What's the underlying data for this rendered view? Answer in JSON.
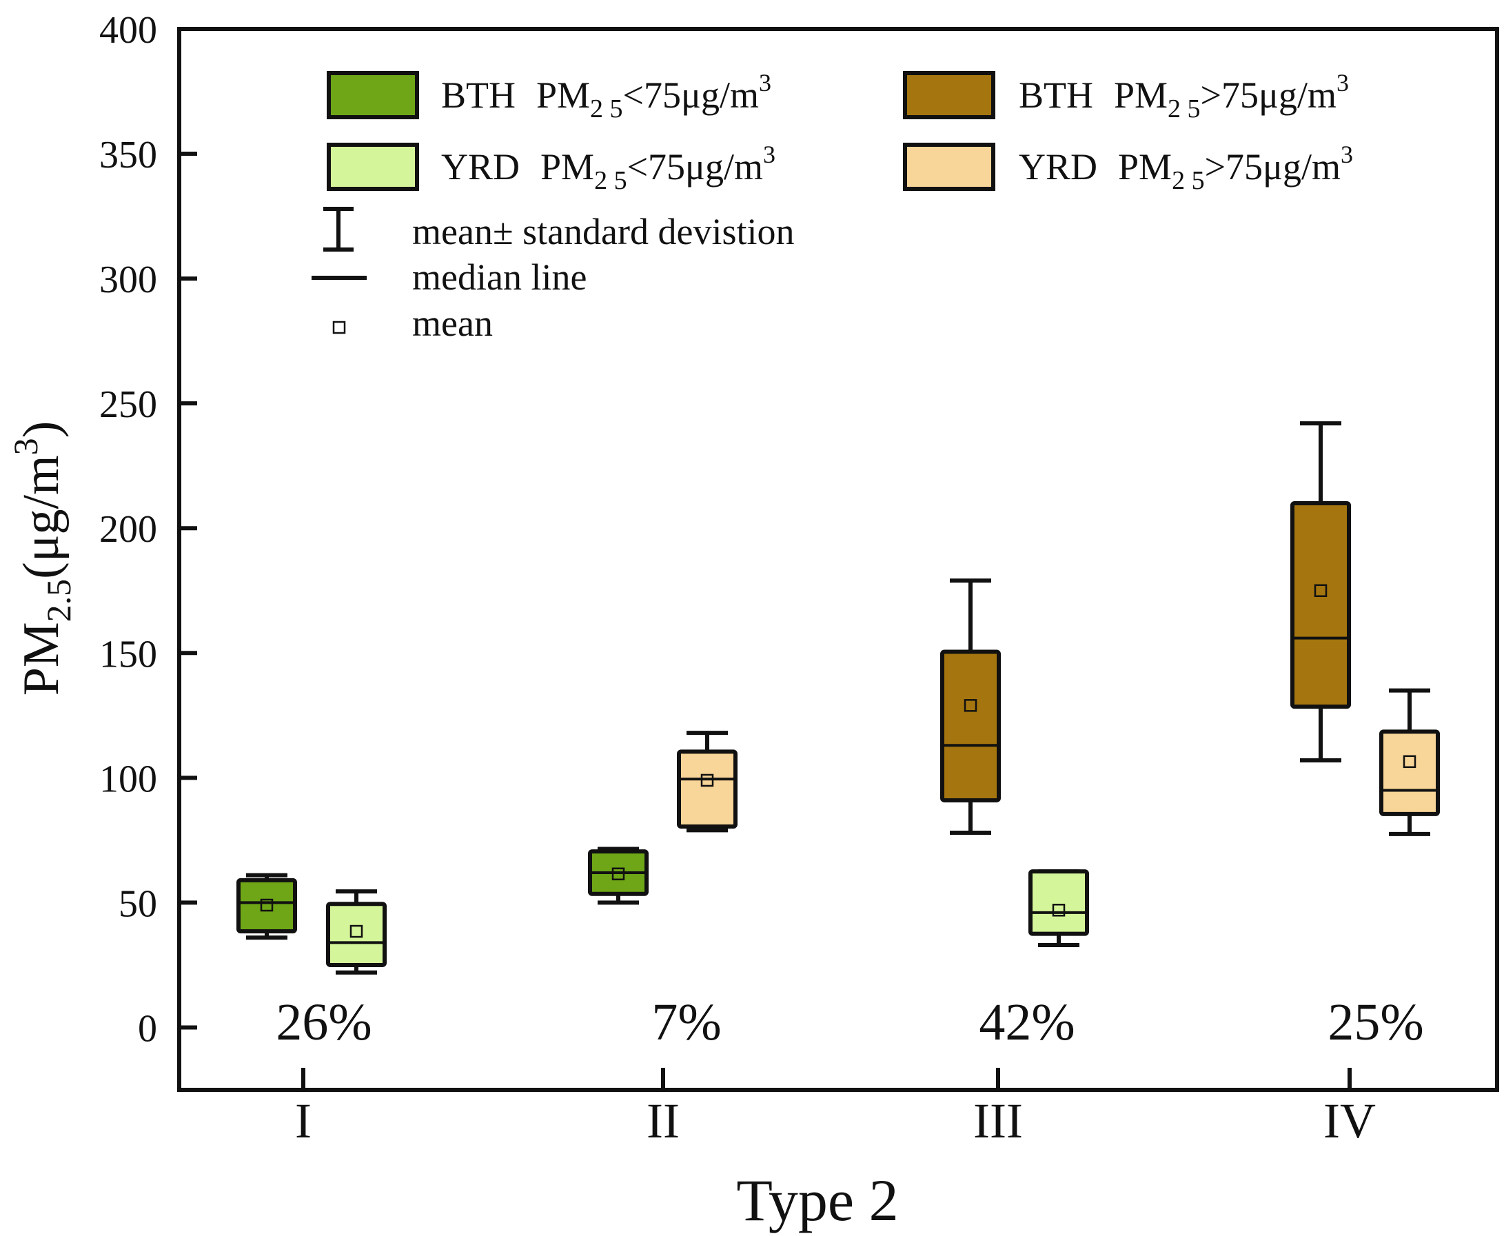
{
  "chart_data": {
    "type": "boxplot",
    "xlabel": "Type 2",
    "ylabel": "PM",
    "ylabel_sub": "2.5",
    "ylabel_unit": "(μg/m",
    "ylabel_sup": "3",
    "ylabel_close": ")",
    "ylim": [
      -25,
      400
    ],
    "yticks": [
      0,
      50,
      100,
      150,
      200,
      250,
      300,
      350,
      400
    ],
    "categories": [
      "I",
      "II",
      "III",
      "IV"
    ],
    "percentages": [
      "26%",
      "7%",
      "42%",
      "25%"
    ],
    "colors": {
      "bth_low": "#6ea617",
      "yrd_low": "#d5f59a",
      "bth_high": "#a5760f",
      "yrd_high": "#f8d598",
      "stroke": "#111111"
    },
    "legend": {
      "entries": [
        {
          "key": "bth_low",
          "region": "BTH",
          "pm": "PM",
          "sub": "2 5",
          "rel": "<75μg/m",
          "sup": "3"
        },
        {
          "key": "bth_high",
          "region": "BTH",
          "pm": "PM",
          "sub": "2 5",
          "rel": ">75μg/m",
          "sup": "3"
        },
        {
          "key": "yrd_low",
          "region": "YRD",
          "pm": "PM",
          "sub": "2 5",
          "rel": "<75μg/m",
          "sup": "3"
        },
        {
          "key": "yrd_high",
          "region": "YRD",
          "pm": "PM",
          "sub": "2 5",
          "rel": ">75μg/m",
          "sup": "3"
        }
      ],
      "sd_label": "mean± standard devistion",
      "median_label": "median line",
      "mean_label": "mean"
    },
    "series": [
      {
        "category": "I",
        "key": "bth_low",
        "whisker_low": 36,
        "q1": 38.5,
        "median": 50,
        "q3": 59,
        "whisker_high": 61,
        "mean": 49
      },
      {
        "category": "I",
        "key": "yrd_low",
        "whisker_low": 22,
        "q1": 25,
        "median": 34,
        "q3": 49.5,
        "whisker_high": 54.5,
        "mean": 38.5
      },
      {
        "category": "II",
        "key": "bth_low",
        "whisker_low": 50,
        "q1": 53.5,
        "median": 62,
        "q3": 70.5,
        "whisker_high": 71.5,
        "mean": 61.5
      },
      {
        "category": "II",
        "key": "yrd_high",
        "whisker_low": 79,
        "q1": 80.5,
        "median": 99.5,
        "q3": 110.5,
        "whisker_high": 118,
        "mean": 99
      },
      {
        "category": "III",
        "key": "bth_high",
        "whisker_low": 78,
        "q1": 91,
        "median": 113,
        "q3": 150.5,
        "whisker_high": 179,
        "mean": 129
      },
      {
        "category": "III",
        "key": "yrd_low",
        "whisker_low": 33,
        "q1": 37.5,
        "median": 46,
        "q3": 62.5,
        "whisker_high": 62.5,
        "mean": 47
      },
      {
        "category": "IV",
        "key": "bth_high",
        "whisker_low": 107,
        "q1": 128.5,
        "median": 156,
        "q3": 210,
        "whisker_high": 242,
        "mean": 175
      },
      {
        "category": "IV",
        "key": "yrd_high",
        "whisker_low": 77.5,
        "q1": 85.5,
        "median": 95,
        "q3": 118.5,
        "whisker_high": 135,
        "mean": 106.5
      }
    ]
  }
}
